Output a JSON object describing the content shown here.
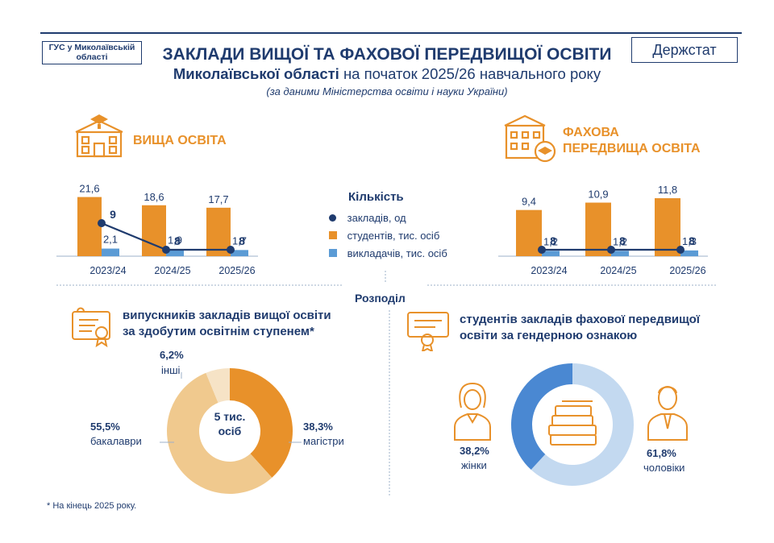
{
  "header": {
    "source_badge": "ГУС у Миколаївській області",
    "agency_badge": "Держстат",
    "title_line1": "ЗАКЛАДИ ВИЩОЇ ТА ФАХОВОЇ ПЕРЕДВИЩОЇ ОСВІТИ",
    "title_line2_bold": "Миколаївської області",
    "title_line2_rest": " на початок 2025/26 навчального року",
    "title_line3": "(за даними Міністерства освіти і науки України)"
  },
  "sections": {
    "higher": "ВИЩА ОСВІТА",
    "professional_line1": "ФАХОВА",
    "professional_line2": "ПЕРЕДВИЩА ОСВІТА"
  },
  "legend": {
    "title": "Кількість",
    "institutions": "закладів, од",
    "students": "студентів, тис. осіб",
    "teachers": "викладачів, тис. осіб"
  },
  "distribution": {
    "title": "Розподіл",
    "graduates_line1": "випускників закладів вищої освіти",
    "graduates_line2": "за здобутим освітнім ступенем*",
    "students_line1": "студентів закладів фахової передвищої",
    "students_line2": "освіти за гендерною ознакою"
  },
  "footnote": "* На кінець 2025 року.",
  "colors": {
    "orange": "#e8912a",
    "light_blue": "#5b9bd5",
    "navy": "#1f3b6e",
    "pale_orange": "#f0c98e",
    "very_pale": "#f6e3c6",
    "pale_blue": "#c3d9f0",
    "mid_blue": "#4a88d2"
  },
  "chart_data": [
    {
      "type": "bar",
      "categories": [
        "2023/24",
        "2024/25",
        "2025/26"
      ],
      "series": [
        {
          "name": "студентів, тис. осіб",
          "values": [
            21.6,
            18.6,
            17.7
          ],
          "labels": [
            "21,6",
            "18,6",
            "17,7"
          ]
        },
        {
          "name": "викладачів, тис. осіб",
          "values": [
            2.1,
            1.9,
            1.7
          ],
          "labels": [
            "2,1",
            "1,9",
            "1,7"
          ]
        },
        {
          "name": "закладів, од",
          "values": [
            9,
            8,
            8
          ],
          "labels": [
            "9",
            "8",
            "8"
          ]
        }
      ],
      "title": "ВИЩА ОСВІТА"
    },
    {
      "type": "bar",
      "categories": [
        "2023/24",
        "2024/25",
        "2025/26"
      ],
      "series": [
        {
          "name": "студентів, тис. осіб",
          "values": [
            9.4,
            10.9,
            11.8
          ],
          "labels": [
            "9,4",
            "10,9",
            "11,8"
          ]
        },
        {
          "name": "викладачів, тис. осіб",
          "values": [
            1.2,
            1.2,
            1.3
          ],
          "labels": [
            "1,2",
            "1,2",
            "1,3"
          ]
        },
        {
          "name": "закладів, од",
          "values": [
            8,
            8,
            8
          ],
          "labels": [
            "8",
            "8",
            "8"
          ]
        }
      ],
      "title": "ФАХОВА ПЕРЕДВИЩА ОСВІТА"
    },
    {
      "type": "pie",
      "center_label_line1": "5 тис.",
      "center_label_line2": "осіб",
      "slices": [
        {
          "name": "магістри",
          "value": 38.3,
          "label": "38,3%"
        },
        {
          "name": "бакалаври",
          "value": 55.5,
          "label": "55,5%"
        },
        {
          "name": "інші",
          "value": 6.2,
          "label": "6,2%"
        }
      ]
    },
    {
      "type": "pie",
      "slices": [
        {
          "name": "чоловіки",
          "value": 61.8,
          "label": "61,8%"
        },
        {
          "name": "жінки",
          "value": 38.2,
          "label": "38,2%"
        }
      ]
    }
  ]
}
